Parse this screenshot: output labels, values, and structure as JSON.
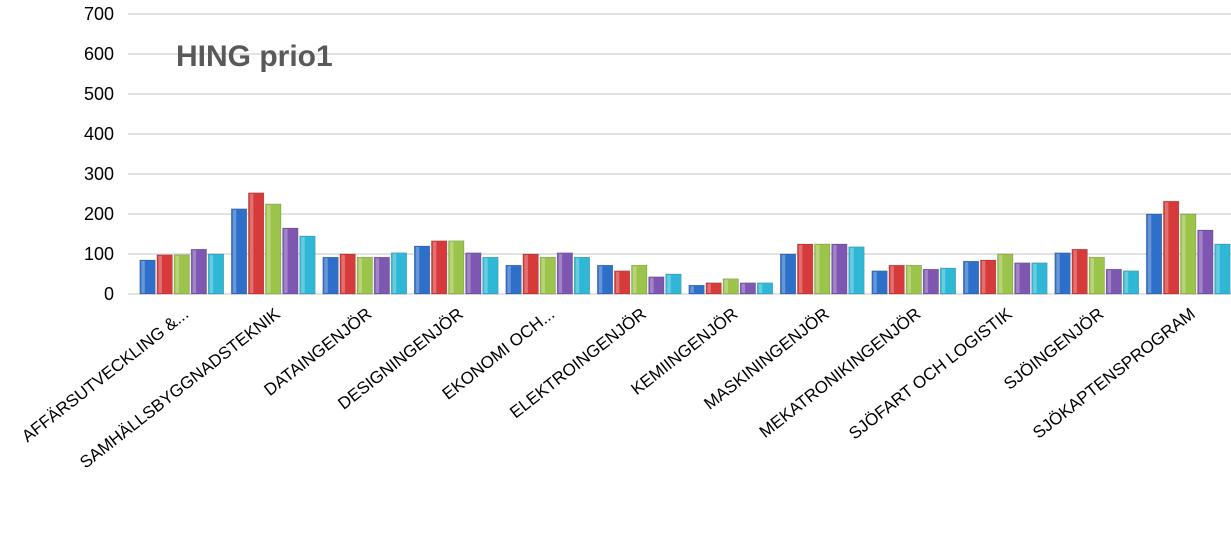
{
  "chart_data": {
    "type": "bar",
    "title": "HING prio1",
    "xlabel": "",
    "ylabel": "",
    "ylim": [
      0,
      700
    ],
    "yticks": [
      0,
      100,
      200,
      300,
      400,
      500,
      600,
      700
    ],
    "grid": true,
    "legend": "none",
    "categories": [
      "AFFÄRSUTVECKLING &...",
      "SAMHÄLLSBYGGNADSTEKNIK",
      "DATAINGENJÖR",
      "DESIGNINGENJÖR",
      "EKONOMI OCH...",
      "ELEKTROINGENJÖR",
      "KEMIINGENJÖR",
      "MASKININGENJÖR",
      "MEKATRONIKINGENJÖR",
      "SJÖFART OCH LOGISTIK",
      "SJÖINGENJÖR",
      "SJÖKAPTENSPROGRAM"
    ],
    "series": [
      {
        "color": "#2e6fc9",
        "values": [
          85,
          213,
          92,
          120,
          72,
          72,
          22,
          100,
          58,
          82,
          103,
          200
        ]
      },
      {
        "color": "#d63a3a",
        "values": [
          98,
          253,
          100,
          133,
          100,
          58,
          28,
          125,
          72,
          85,
          112,
          232
        ]
      },
      {
        "color": "#9cc44a",
        "values": [
          98,
          225,
          92,
          133,
          92,
          72,
          38,
          125,
          72,
          100,
          92,
          200
        ]
      },
      {
        "color": "#7e57b2",
        "values": [
          112,
          165,
          92,
          103,
          103,
          43,
          28,
          125,
          62,
          78,
          62,
          160
        ]
      },
      {
        "color": "#2fb8d6",
        "values": [
          100,
          145,
          103,
          92,
          92,
          50,
          28,
          118,
          65,
          78,
          58,
          125
        ]
      }
    ]
  }
}
